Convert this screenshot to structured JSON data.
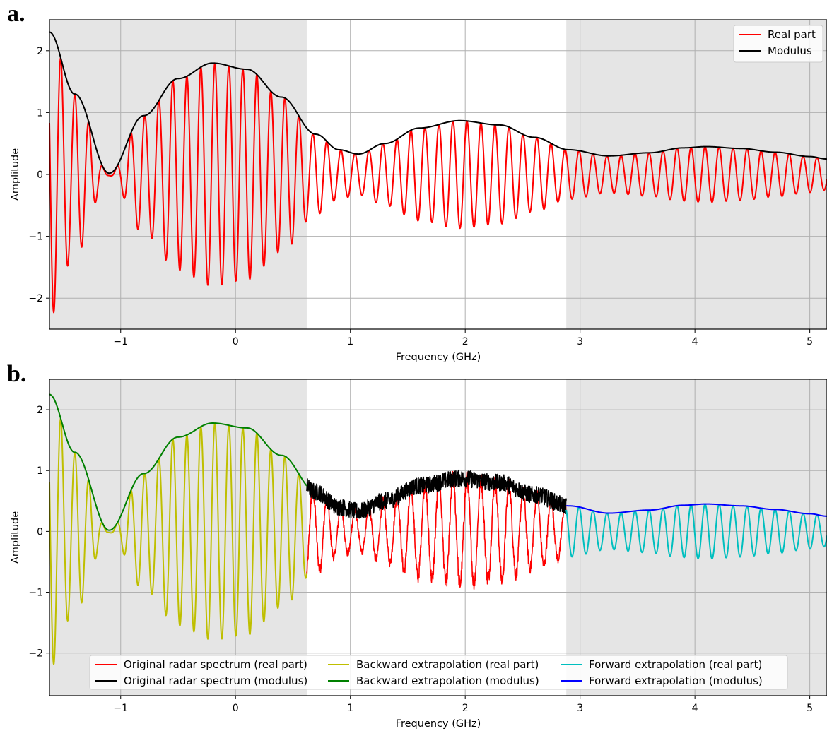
{
  "chart_data": [
    {
      "panel_label": "a.",
      "type": "line",
      "xlabel": "Frequency (GHz)",
      "ylabel": "Amplitude",
      "xlim": [
        -1.62,
        5.15
      ],
      "ylim": [
        -2.5,
        2.5
      ],
      "xticks": [
        "−1",
        "0",
        "1",
        "2",
        "3",
        "4",
        "5"
      ],
      "yticks": [
        "−2",
        "−1",
        "0",
        "1",
        "2"
      ],
      "xtick_values": [
        -1,
        0,
        1,
        2,
        3,
        4,
        5
      ],
      "ytick_values": [
        -2,
        -1,
        0,
        1,
        2
      ],
      "grid": true,
      "shaded_regions": [
        [
          -1.62,
          0.62
        ],
        [
          2.88,
          5.15
        ]
      ],
      "shade_color": "#e5e5e5",
      "legend_position": "top-right",
      "series": [
        {
          "name": "Real part",
          "kind": "real",
          "x_range": [
            -1.62,
            5.15
          ],
          "color": "#ff0000"
        },
        {
          "name": "Modulus",
          "kind": "modulus",
          "x_range": [
            -1.62,
            5.15
          ],
          "color": "#000000"
        }
      ],
      "modulus_points": {
        "x": [
          -1.62,
          -1.4,
          -1.1,
          -0.8,
          -0.5,
          -0.2,
          0.1,
          0.4,
          0.7,
          0.9,
          1.07,
          1.3,
          1.6,
          1.95,
          2.3,
          2.6,
          2.9,
          3.25,
          3.6,
          3.9,
          4.1,
          4.4,
          4.7,
          5.0,
          5.15
        ],
        "y": [
          2.3,
          1.3,
          0.02,
          0.95,
          1.55,
          1.8,
          1.7,
          1.25,
          0.65,
          0.4,
          0.33,
          0.5,
          0.75,
          0.87,
          0.8,
          0.6,
          0.4,
          0.3,
          0.35,
          0.43,
          0.45,
          0.42,
          0.36,
          0.29,
          0.25
        ]
      },
      "real_part_cycles_per_ghz": 8.2
    },
    {
      "panel_label": "b.",
      "type": "line",
      "xlabel": "Frequency (GHz)",
      "ylabel": "Amplitude",
      "xlim": [
        -1.62,
        5.15
      ],
      "ylim": [
        -2.7,
        2.5
      ],
      "xticks": [
        "−1",
        "0",
        "1",
        "2",
        "3",
        "4",
        "5"
      ],
      "yticks": [
        "−2",
        "−1",
        "0",
        "1",
        "2"
      ],
      "xtick_values": [
        -1,
        0,
        1,
        2,
        3,
        4,
        5
      ],
      "ytick_values": [
        -2,
        -1,
        0,
        1,
        2
      ],
      "grid": true,
      "shaded_regions": [
        [
          -1.62,
          0.62
        ],
        [
          2.88,
          5.15
        ]
      ],
      "shade_color": "#e5e5e5",
      "legend_position": "bottom-center",
      "series": [
        {
          "name": "Original radar spectrum (real part)",
          "kind": "real",
          "noisy": true,
          "x_range": [
            0.62,
            2.88
          ],
          "color": "#ff0000"
        },
        {
          "name": "Original radar spectrum (modulus)",
          "kind": "modulus",
          "noisy": true,
          "x_range": [
            0.62,
            2.88
          ],
          "color": "#000000"
        },
        {
          "name": "Backward extrapolation (real part)",
          "kind": "real",
          "x_range": [
            -1.62,
            0.62
          ],
          "color": "#bfbf00"
        },
        {
          "name": "Backward extrapolation (modulus)",
          "kind": "modulus",
          "x_range": [
            -1.62,
            0.62
          ],
          "color": "#008000"
        },
        {
          "name": "Forward extrapolation (real part)",
          "kind": "real",
          "x_range": [
            2.88,
            5.15
          ],
          "color": "#00bfbf"
        },
        {
          "name": "Forward extrapolation (modulus)",
          "kind": "modulus",
          "x_range": [
            2.88,
            5.15
          ],
          "color": "#0000ff"
        }
      ],
      "modulus_points": {
        "x": [
          -1.62,
          -1.4,
          -1.1,
          -0.8,
          -0.5,
          -0.2,
          0.1,
          0.4,
          0.7,
          0.9,
          1.07,
          1.3,
          1.6,
          1.95,
          2.3,
          2.6,
          2.9,
          3.25,
          3.6,
          3.9,
          4.1,
          4.4,
          4.7,
          5.0,
          5.15
        ],
        "y": [
          2.25,
          1.3,
          0.02,
          0.95,
          1.55,
          1.78,
          1.7,
          1.25,
          0.65,
          0.4,
          0.33,
          0.5,
          0.75,
          0.87,
          0.8,
          0.6,
          0.42,
          0.3,
          0.35,
          0.43,
          0.45,
          0.42,
          0.36,
          0.29,
          0.25
        ]
      },
      "real_part_cycles_per_ghz": 8.2
    }
  ]
}
